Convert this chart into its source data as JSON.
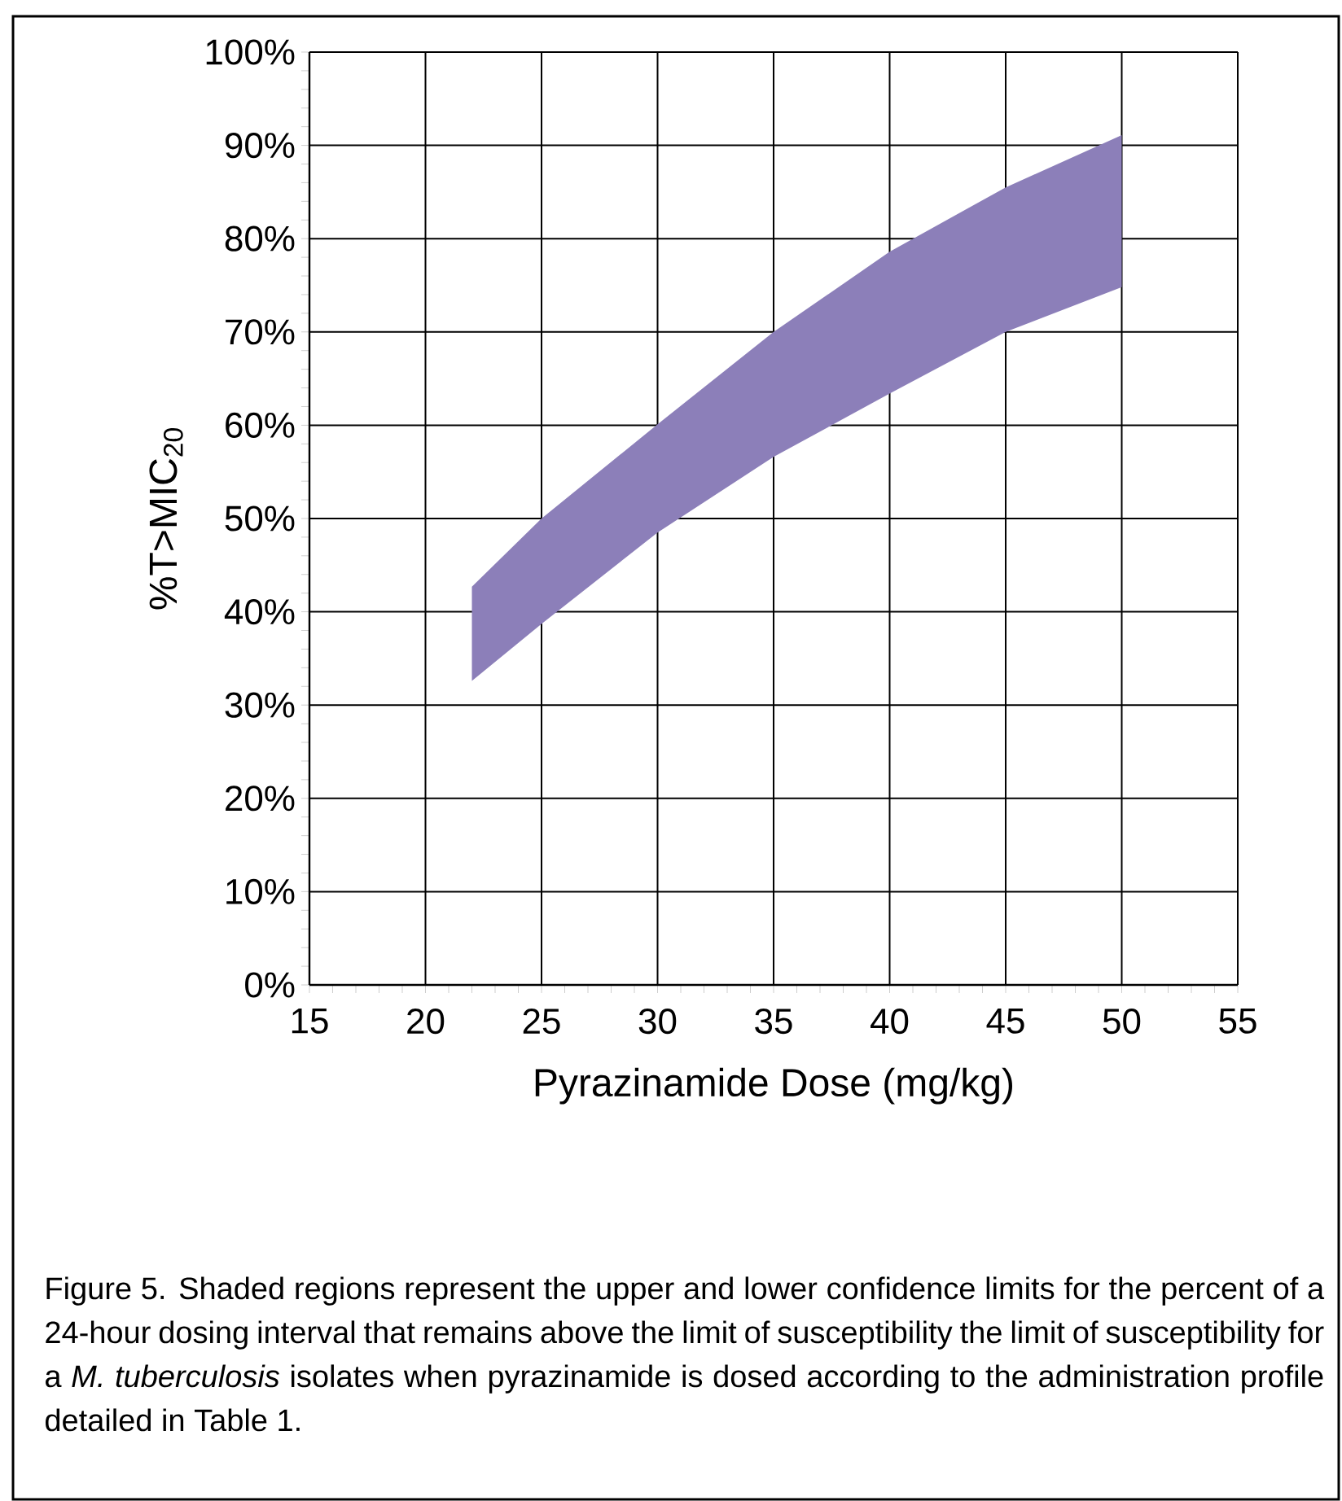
{
  "chart_data": {
    "type": "area",
    "xlabel": "Pyrazinamide Dose (mg/kg)",
    "ylabel": "%T>MIC$_{20}$",
    "series": [
      {
        "color": "#8c7fb9",
        "x": [
          22,
          25,
          30,
          35,
          40,
          45,
          50
        ],
        "values": [
          null,
          null,
          null,
          null,
          null,
          null,
          null
        ],
        "lower": [
          32.6,
          38.7,
          48.5,
          56.6,
          63.4,
          70,
          74.8
        ],
        "upper": [
          42.7,
          50,
          60.1,
          70,
          78.6,
          85.5,
          91.1
        ]
      }
    ],
    "xlim": [
      15,
      55
    ],
    "xticks": [
      15,
      20,
      25,
      30,
      35,
      40,
      45,
      50,
      55
    ],
    "ylim": [
      0,
      100
    ],
    "yticks": [
      {
        "value": 0,
        "label": "0%"
      },
      {
        "value": 10,
        "label": "10%"
      },
      {
        "value": 20,
        "label": "20%"
      },
      {
        "value": 30,
        "label": "30%"
      },
      {
        "value": 40,
        "label": "40%"
      },
      {
        "value": 50,
        "label": "50%"
      },
      {
        "value": 60,
        "label": "60%"
      },
      {
        "value": 70,
        "label": "70%"
      },
      {
        "value": 80,
        "label": "80%"
      },
      {
        "value": 90,
        "label": "90%"
      },
      {
        "value": 100,
        "label": "100%"
      }
    ],
    "grid": true,
    "annotations": [
      "Figure 5.  Shaded regions represent the upper and lower confidence limits for the percent of a 24-hour dosing interval that remains above the limit of susceptibility the limit of susceptibility for a *M. tuberculosis* isolates when pyrazinamide is dosed according to the administration profile detailed in Table 1."
    ]
  }
}
